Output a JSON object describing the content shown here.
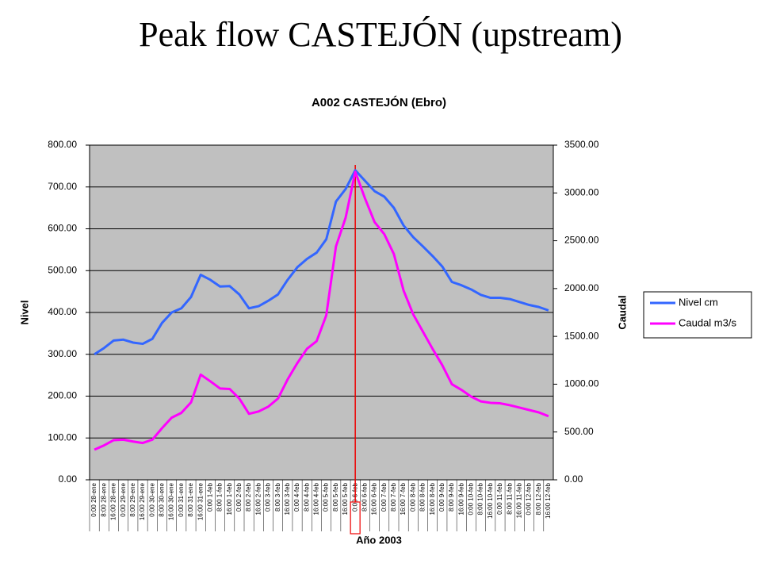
{
  "chart_data": {
    "type": "line",
    "page_title": "Peak flow CASTEJÓN (upstream)",
    "title": "A002 CASTEJÓN (Ebro)",
    "x_label": "Año 2003",
    "y_label": "Nivel",
    "y2_label": "Caudal",
    "categories": [
      "0:00 28-ene",
      "8:00 28-ene",
      "16:00 28-ene",
      "0:00 29-ene",
      "8:00 29-ene",
      "16:00 29-ene",
      "0:00 30-ene",
      "8:00 30-ene",
      "16:00 30-ene",
      "0:00 31-ene",
      "8:00 31-ene",
      "16:00 31-ene",
      "0:00 1-feb",
      "8:00 1-feb",
      "16:00 1-feb",
      "0:00 2-feb",
      "8:00 2-feb",
      "16:00 2-feb",
      "0:00 3-feb",
      "8:00 3-feb",
      "16:00 3-feb",
      "0:00 4-feb",
      "8:00 4-feb",
      "16:00 4-feb",
      "0:00 5-feb",
      "8:00 5-feb",
      "16:00 5-feb",
      "0:00 6-feb",
      "8:00 6-feb",
      "16:00 6-feb",
      "0:00 7-feb",
      "8:00 7-feb",
      "16:00 7-feb",
      "0:00 8-feb",
      "8:00 8-feb",
      "16:00 8-feb",
      "0:00 9-feb",
      "8:00 9-feb",
      "16:00 9-feb",
      "0:00 10-feb",
      "8:00 10-feb",
      "16:00 10-feb",
      "0:00 11-feb",
      "8:00 11-feb",
      "16:00 11-feb",
      "0:00 12-feb",
      "8:00 12-feb",
      "16:00 12-feb"
    ],
    "series": [
      {
        "name": "Nivel cm",
        "color": "#3366ff",
        "values": [
          300,
          315,
          333,
          335,
          328,
          325,
          337,
          375,
          400,
          410,
          437,
          490,
          478,
          462,
          463,
          443,
          410,
          415,
          428,
          443,
          478,
          508,
          528,
          543,
          575,
          665,
          695,
          740,
          715,
          690,
          677,
          650,
          608,
          580,
          558,
          535,
          510,
          473,
          465,
          455,
          442,
          435,
          435,
          432,
          425,
          418,
          413,
          405
        ]
      },
      {
        "name": "Caudal m3/s",
        "color": "#ff00ff",
        "axis": "y2",
        "values": [
          315,
          360,
          415,
          420,
          400,
          385,
          420,
          540,
          650,
          700,
          810,
          1100,
          1030,
          955,
          950,
          850,
          690,
          715,
          765,
          850,
          1050,
          1220,
          1370,
          1450,
          1720,
          2440,
          2740,
          3220,
          2945,
          2695,
          2570,
          2360,
          1980,
          1730,
          1550,
          1370,
          1200,
          1000,
          940,
          870,
          820,
          805,
          800,
          780,
          755,
          730,
          705,
          665
        ]
      }
    ],
    "ylim": [
      0,
      800
    ],
    "yticks": [
      {
        "value": 0,
        "label": "0.00"
      },
      {
        "value": 100,
        "label": "100.00"
      },
      {
        "value": 200,
        "label": "200.00"
      },
      {
        "value": 300,
        "label": "300.00"
      },
      {
        "value": 400,
        "label": "400.00"
      },
      {
        "value": 500,
        "label": "500.00"
      },
      {
        "value": 600,
        "label": "600.00"
      },
      {
        "value": 700,
        "label": "700.00"
      },
      {
        "value": 800,
        "label": "800.00"
      }
    ],
    "y2lim": [
      0,
      3500
    ],
    "y2ticks": [
      {
        "value": 0,
        "label": "0.00"
      },
      {
        "value": 500,
        "label": "500.00"
      },
      {
        "value": 1000,
        "label": "1000.00"
      },
      {
        "value": 1500,
        "label": "1500.00"
      },
      {
        "value": 2000,
        "label": "2000.00"
      },
      {
        "value": 2500,
        "label": "2500.00"
      },
      {
        "value": 3000,
        "label": "3000.00"
      },
      {
        "value": 3500,
        "label": "3500.00"
      }
    ],
    "grid": true,
    "plot_background": "#c0c0c0",
    "legend": "right"
  }
}
